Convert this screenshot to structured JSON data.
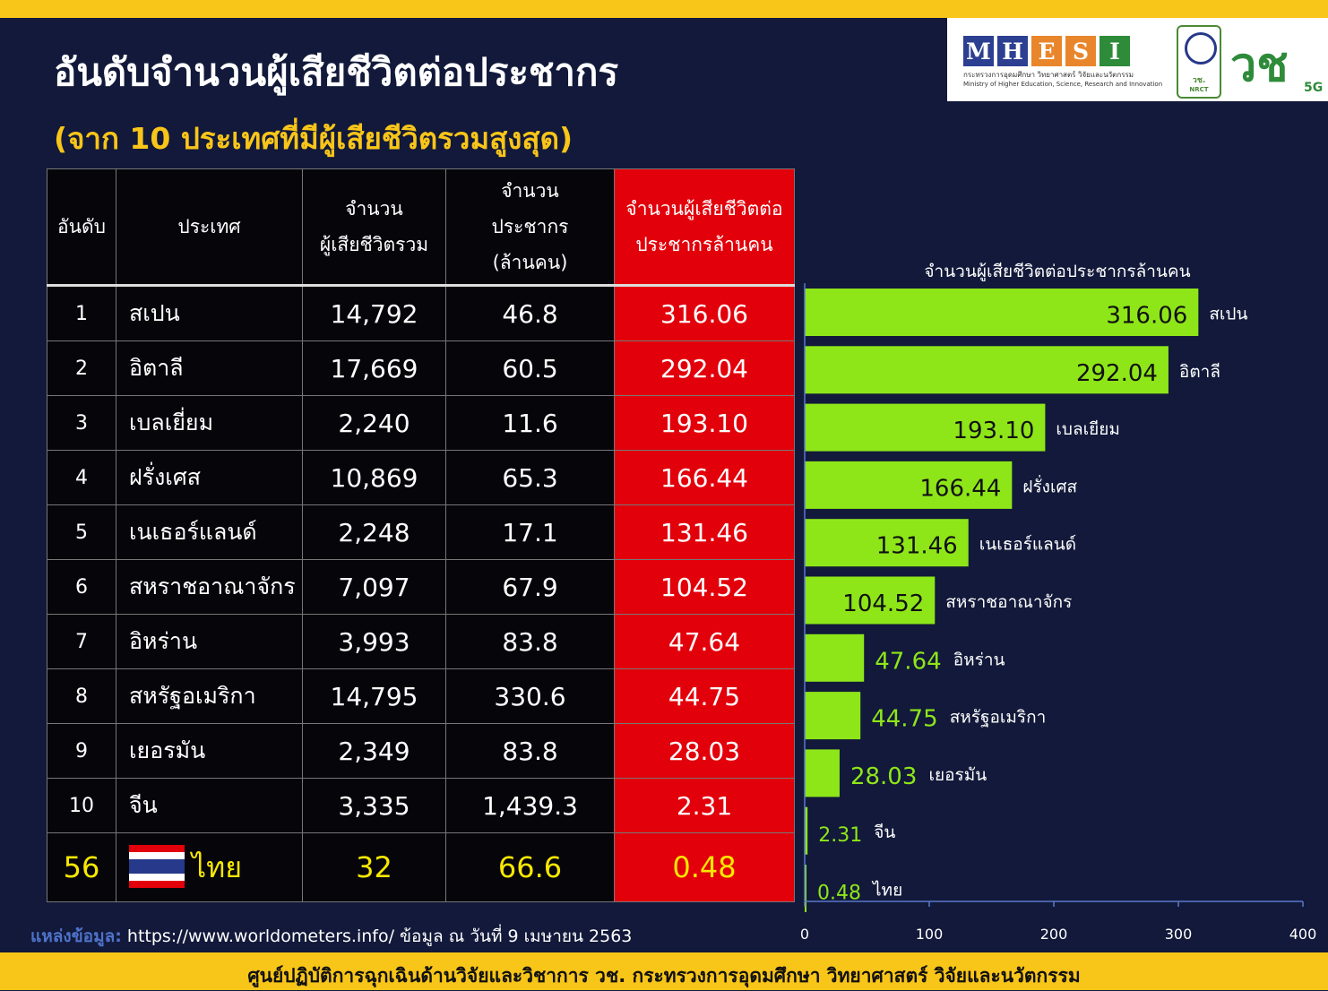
{
  "title": "อันดับจำนวนผู้เสียชีวิตต่อประชากร",
  "subtitle": "(จาก 10 ประเทศที่มีผู้เสียชีวิตรวมสูงสุด)",
  "logos": {
    "mhesi_letters": [
      "M",
      "H",
      "E",
      "S",
      "I"
    ],
    "mhesi_colors": [
      "#2d3f91",
      "#2d3f91",
      "#e9862b",
      "#e9862b",
      "#2e8b3a"
    ],
    "mhesi_thai": "กระทรวงการอุดมศึกษา วิทยาศาสตร์ วิจัยและนวัตกรรม",
    "mhesi_english": "Ministry of Higher Education, Science, Research and Innovation",
    "nrct_thai": "วช.",
    "nrct_english": "NRCT",
    "v5g_text": "วช",
    "v5g_suffix": "5G"
  },
  "table": {
    "headers": {
      "rank": "อันดับ",
      "country": "ประเทศ",
      "deaths_line1": "จำนวน",
      "deaths_line2": "ผู้เสียชีวิตรวม",
      "pop_line1": "จำนวน",
      "pop_line2": "ประชากร",
      "pop_line3": "(ล้านคน)",
      "rate_line1": "จำนวนผู้เสียชีวิตต่อ",
      "rate_line2": "ประชากรล้านคน"
    },
    "rows": [
      {
        "rank": "1",
        "country": "สเปน",
        "deaths": "14,792",
        "population": "46.8",
        "rate": "316.06"
      },
      {
        "rank": "2",
        "country": "อิตาลี",
        "deaths": "17,669",
        "population": "60.5",
        "rate": "292.04"
      },
      {
        "rank": "3",
        "country": "เบลเยี่ยม",
        "deaths": "2,240",
        "population": "11.6",
        "rate": "193.10"
      },
      {
        "rank": "4",
        "country": "ฝรั่งเศส",
        "deaths": "10,869",
        "population": "65.3",
        "rate": "166.44"
      },
      {
        "rank": "5",
        "country": "เนเธอร์แลนด์",
        "deaths": "2,248",
        "population": "17.1",
        "rate": "131.46"
      },
      {
        "rank": "6",
        "country": "สหราชอาณาจักร",
        "deaths": "7,097",
        "population": "67.9",
        "rate": "104.52"
      },
      {
        "rank": "7",
        "country": "อิหร่าน",
        "deaths": "3,993",
        "population": "83.8",
        "rate": "47.64"
      },
      {
        "rank": "8",
        "country": "สหรัฐอเมริกา",
        "deaths": "14,795",
        "population": "330.6",
        "rate": "44.75"
      },
      {
        "rank": "9",
        "country": "เยอรมัน",
        "deaths": "2,349",
        "population": "83.8",
        "rate": "28.03"
      },
      {
        "rank": "10",
        "country": "จีน",
        "deaths": "3,335",
        "population": "1,439.3",
        "rate": "2.31"
      }
    ],
    "thai_row": {
      "rank": "56",
      "country": "ไทย",
      "deaths": "32",
      "population": "66.6",
      "rate": "0.48"
    }
  },
  "source": {
    "label": "แหล่งข้อมูล:",
    "url": "https://www.worldometers.info/",
    "date_text": "ข้อมูล ณ วันที่ 9 เมษายน 2563"
  },
  "footer": "ศูนย์ปฏิบัติการฉุกเฉินด้านวิจัยและวิชาการ   วช.   กระทรวงการอุดมศึกษา วิทยาศาสตร์ วิจัยและนวัตกรรม",
  "colors": {
    "background": "#12193a",
    "accent_yellow": "#f8c519",
    "header_red": "#e2000b",
    "bar_green": "#8ee619",
    "thai_yellow": "#f8e800"
  },
  "chart_data": {
    "type": "bar",
    "orientation": "horizontal",
    "title": "จำนวนผู้เสียชีวิตต่อประชากรล้านคน",
    "categories": [
      "สเปน",
      "อิตาลี",
      "เบลเยียม",
      "ฝรั่งเศส",
      "เนเธอร์แลนด์",
      "สหราชอาณาจักร",
      "อิหร่าน",
      "สหรัฐอเมริกา",
      "เยอรมัน",
      "จีน",
      "ไทย"
    ],
    "values": [
      316.06,
      292.04,
      193.1,
      166.44,
      131.46,
      104.52,
      47.64,
      44.75,
      28.03,
      2.31,
      0.48
    ],
    "value_labels": [
      "316.06",
      "292.04",
      "193.10",
      "166.44",
      "131.46",
      "104.52",
      "47.64",
      "44.75",
      "28.03",
      "2.31",
      "0.48"
    ],
    "xlim": [
      0,
      400
    ],
    "xticks": [
      0,
      100,
      200,
      300,
      400
    ],
    "bar_color": "#8ee619",
    "grid": false,
    "legend": "none"
  }
}
